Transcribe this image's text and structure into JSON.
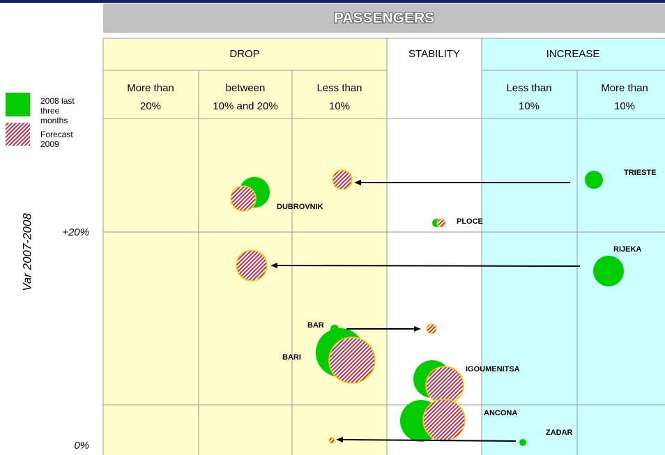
{
  "header": {
    "title": "PASSENGERS"
  },
  "groups": [
    "DROP",
    "STABILITY",
    "INCREASE"
  ],
  "subcolumns": [
    {
      "lines": [
        "More than",
        "20%"
      ]
    },
    {
      "lines": [
        "between",
        "10% and 20%"
      ]
    },
    {
      "lines": [
        "Less than",
        "10%"
      ]
    },
    {
      "lines": [
        "Less than",
        "10%"
      ]
    },
    {
      "lines": [
        "More than",
        "10%"
      ]
    }
  ],
  "legend": [
    {
      "lines": [
        "2008 last",
        "three",
        "months"
      ]
    },
    {
      "lines": [
        "Forecast",
        "2009"
      ]
    }
  ],
  "y_axis": {
    "label": "Var 2007-2008",
    "ticks": [
      "+20%",
      "0%"
    ]
  },
  "ports": [
    "TRIESTE",
    "DUBROVNIK",
    "PLOCE",
    "RIJEKA",
    "BAR",
    "BARI",
    "IGOUMENITSA",
    "ANCONA",
    "ZADAR"
  ]
}
